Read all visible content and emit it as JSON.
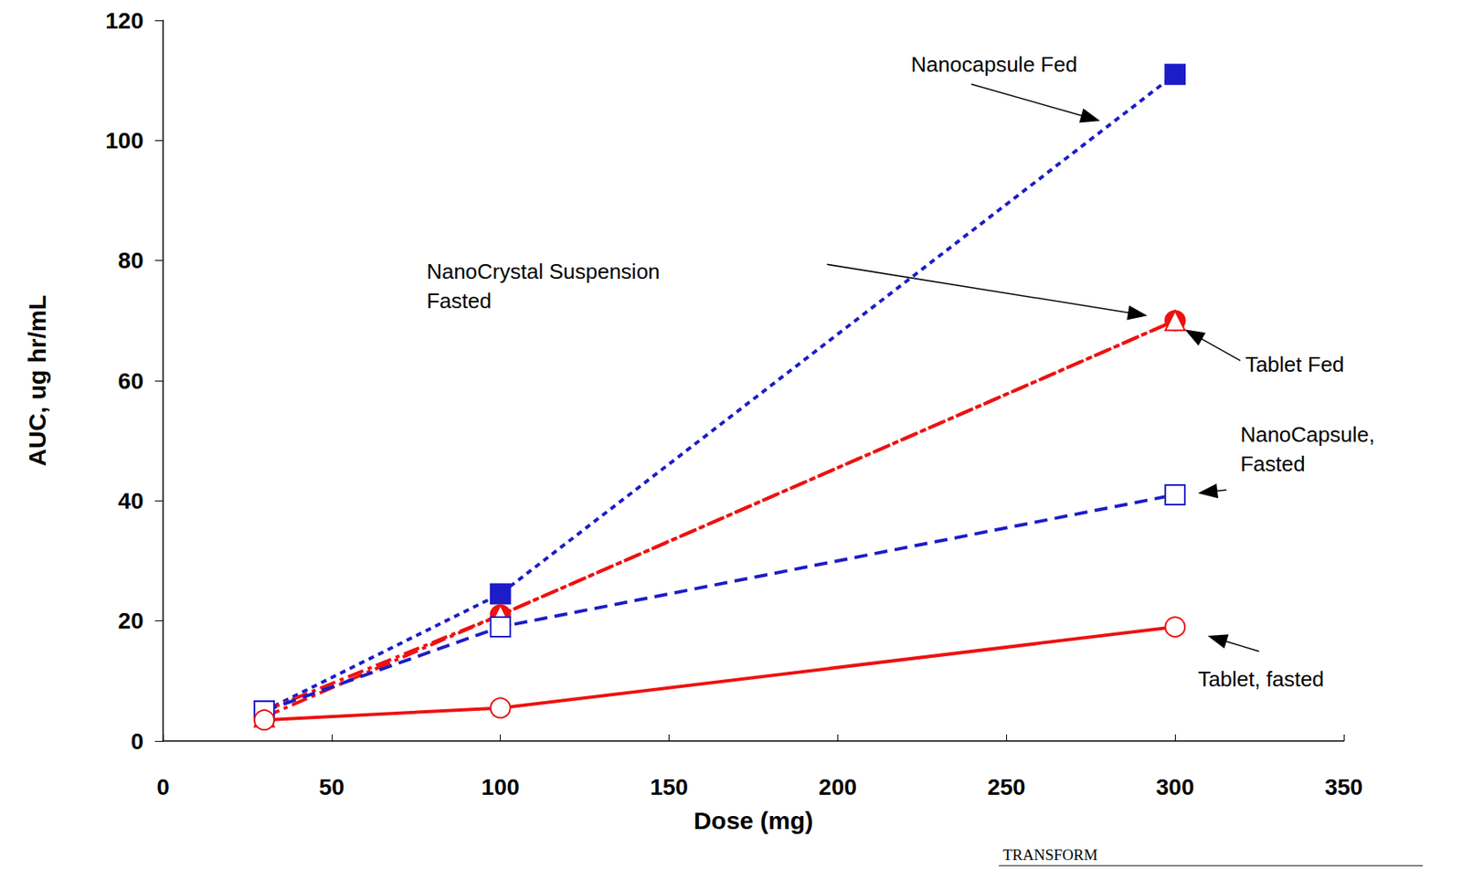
{
  "chart_data": {
    "type": "line",
    "x_label": "Dose (mg)",
    "y_label": "AUC, ug hr/mL",
    "x": [
      30,
      100,
      300
    ],
    "series": [
      {
        "name": "Nanocapsule Fed",
        "color": "#1c1cc8",
        "marker": "square",
        "line_style": "dotted",
        "values": [
          5,
          24.5,
          111
        ]
      },
      {
        "name": "Tablet Fed",
        "color": "#ee1111",
        "marker": "circle",
        "line_style": "dashdot",
        "values": [
          5,
          21,
          70
        ]
      },
      {
        "name": "NanoCrystal Suspension Fasted",
        "color": "#ee1111",
        "marker": "triangle",
        "line_style": "dashdot",
        "values": [
          4,
          21,
          70
        ]
      },
      {
        "name": "NanoCapsule, Fasted",
        "color": "#1c1cc8",
        "marker": "open_square",
        "line_style": "dashed",
        "values": [
          5,
          19,
          41
        ]
      },
      {
        "name": "Tablet, fasted",
        "color": "#ee1111",
        "marker": "open_circle",
        "line_style": "solid",
        "values": [
          3.5,
          5.5,
          19
        ]
      }
    ],
    "xlim": [
      0,
      350
    ],
    "xticks": [
      0,
      50,
      100,
      150,
      200,
      250,
      300,
      350
    ],
    "ylim": [
      0,
      120
    ],
    "yticks": [
      0,
      20,
      40,
      60,
      80,
      100,
      120
    ],
    "grid": false,
    "annotations": [
      "TRANSFORM"
    ]
  }
}
